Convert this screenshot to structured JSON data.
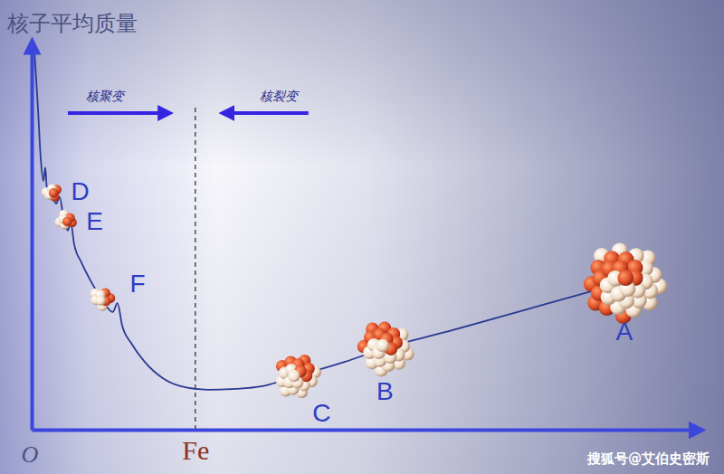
{
  "chart_data": {
    "type": "line",
    "y_label": "核子平均质量",
    "origin_label": "O",
    "x": [
      0.4,
      0.95,
      1.36,
      1.77,
      2.04,
      2.31,
      2.99,
      3.67,
      4.22,
      4.76,
      5.44,
      5.85,
      6.39,
      7.48,
      8.84,
      10.5,
      12.2,
      12.9,
      13.6,
      15.0,
      17.0,
      19.7,
      22.4,
      26.5,
      30.6,
      34.7,
      38.8,
      47.0,
      53.1,
      63.3,
      76.9,
      89.1
    ],
    "values": [
      98.8,
      83.5,
      70.6,
      64.7,
      68.2,
      62.4,
      61.6,
      58.8,
      60.5,
      55.3,
      51.8,
      54.1,
      48.2,
      43.5,
      38.8,
      34.1,
      30.6,
      32.9,
      27.1,
      22.4,
      17.6,
      13.4,
      11.3,
      10.4,
      10.6,
      11.3,
      13.4,
      17.6,
      21.2,
      25.9,
      32.5,
      38.4
    ],
    "color": "#2b3a8f",
    "xlim": [
      0,
      100
    ],
    "ylim": [
      0,
      100
    ],
    "xticks": [
      {
        "value": 24.6,
        "label": "Fe"
      }
    ],
    "yticks": [],
    "grid": true,
    "tick_labels": "x",
    "points": [
      {
        "label": "D",
        "x": 3.0,
        "y": 61.6
      },
      {
        "label": "E",
        "x": 5.2,
        "y": 54.6
      },
      {
        "label": "F",
        "x": 10.5,
        "y": 34.1
      },
      {
        "label": "C",
        "x": 39.9,
        "y": 14.1
      },
      {
        "label": "B",
        "x": 53.1,
        "y": 21.2
      },
      {
        "label": "A",
        "x": 89.1,
        "y": 38.4
      }
    ],
    "annotations": [
      "核聚变",
      "核裂变"
    ],
    "watermark": "搜狐号@艾伯史密斯"
  }
}
